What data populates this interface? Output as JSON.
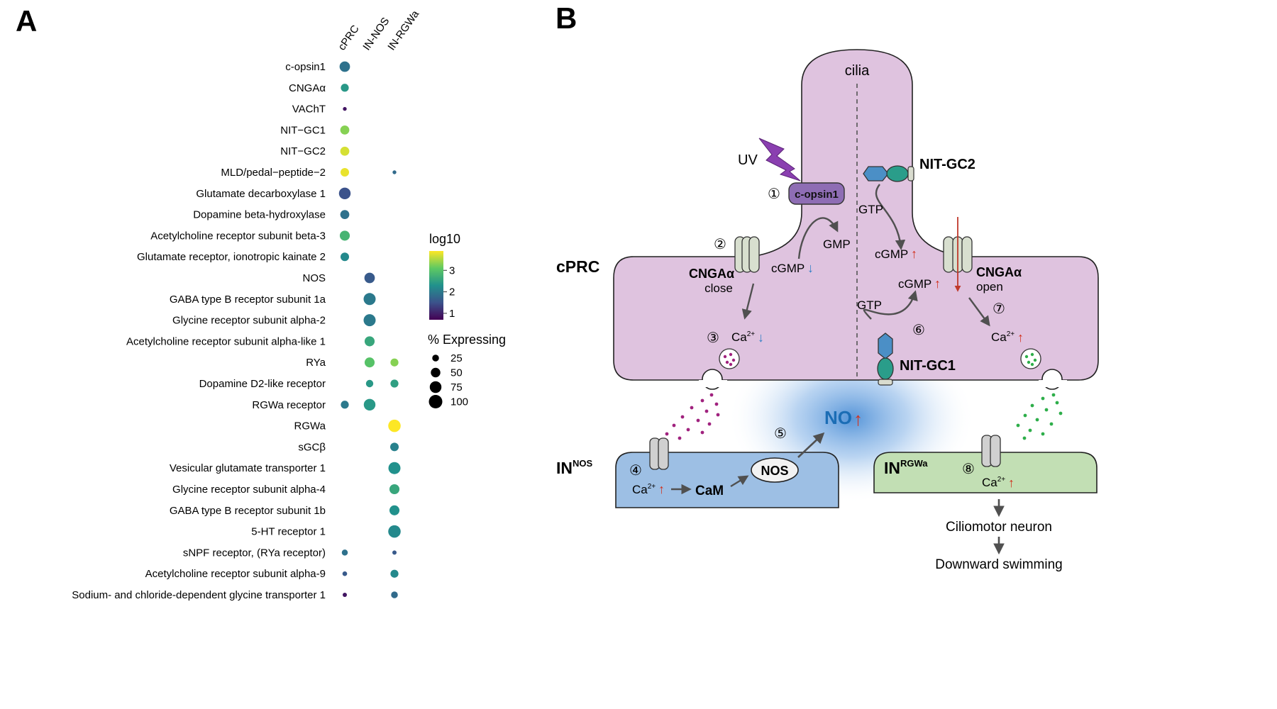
{
  "panel_a": {
    "label": "A",
    "chart_data": {
      "type": "dotplot",
      "columns": [
        "cPRC",
        "IN-NOS",
        "IN-RGWa"
      ],
      "genes": [
        "c-opsin1",
        "CNGAα",
        "VAChT",
        "NIT−GC1",
        "NIT−GC2",
        "MLD/pedal−peptide−2",
        "Glutamate decarboxylase 1",
        "Dopamine beta-hydroxylase",
        "Acetylcholine receptor subunit beta-3",
        "Glutamate receptor, ionotropic kainate 2",
        "NOS",
        "GABA type B receptor subunit 1a",
        "Glycine receptor subunit alpha-2",
        "Acetylcholine receptor subunit alpha-like 1",
        "RYa",
        "Dopamine D2-like receptor",
        "RGWa receptor",
        "RGWa",
        "sGCβ",
        "Vesicular glutamate transporter 1",
        "Glycine receptor subunit alpha-4",
        "GABA type B receptor subunit 1b",
        "5-HT receptor 1",
        "sNPF receptor, (RYa receptor)",
        "Acetylcholine receptor subunit alpha-9",
        "Sodium- and chloride-dependent glycine transporter 1"
      ],
      "points": [
        {
          "gene": 0,
          "col": 0,
          "pct": 60,
          "log10": 1.9
        },
        {
          "gene": 1,
          "col": 0,
          "pct": 35,
          "log10": 2.4
        },
        {
          "gene": 2,
          "col": 0,
          "pct": 8,
          "log10": 0.9
        },
        {
          "gene": 3,
          "col": 0,
          "pct": 45,
          "log10": 3.3
        },
        {
          "gene": 4,
          "col": 0,
          "pct": 45,
          "log10": 3.7
        },
        {
          "gene": 5,
          "col": 0,
          "pct": 40,
          "log10": 3.8
        },
        {
          "gene": 5,
          "col": 2,
          "pct": 8,
          "log10": 1.8
        },
        {
          "gene": 6,
          "col": 0,
          "pct": 75,
          "log10": 1.5
        },
        {
          "gene": 7,
          "col": 0,
          "pct": 45,
          "log10": 1.9
        },
        {
          "gene": 8,
          "col": 0,
          "pct": 55,
          "log10": 2.8
        },
        {
          "gene": 9,
          "col": 0,
          "pct": 40,
          "log10": 2.2
        },
        {
          "gene": 10,
          "col": 1,
          "pct": 60,
          "log10": 1.6
        },
        {
          "gene": 11,
          "col": 1,
          "pct": 80,
          "log10": 2.0
        },
        {
          "gene": 12,
          "col": 1,
          "pct": 80,
          "log10": 2.0
        },
        {
          "gene": 13,
          "col": 1,
          "pct": 55,
          "log10": 2.6
        },
        {
          "gene": 14,
          "col": 1,
          "pct": 55,
          "log10": 3.0
        },
        {
          "gene": 14,
          "col": 2,
          "pct": 35,
          "log10": 3.3
        },
        {
          "gene": 15,
          "col": 1,
          "pct": 30,
          "log10": 2.4
        },
        {
          "gene": 15,
          "col": 2,
          "pct": 35,
          "log10": 2.5
        },
        {
          "gene": 16,
          "col": 0,
          "pct": 35,
          "log10": 2.0
        },
        {
          "gene": 16,
          "col": 1,
          "pct": 75,
          "log10": 2.4
        },
        {
          "gene": 17,
          "col": 2,
          "pct": 85,
          "log10": 3.9
        },
        {
          "gene": 18,
          "col": 2,
          "pct": 40,
          "log10": 2.1
        },
        {
          "gene": 19,
          "col": 2,
          "pct": 80,
          "log10": 2.3
        },
        {
          "gene": 20,
          "col": 2,
          "pct": 55,
          "log10": 2.6
        },
        {
          "gene": 21,
          "col": 2,
          "pct": 55,
          "log10": 2.3
        },
        {
          "gene": 22,
          "col": 2,
          "pct": 85,
          "log10": 2.2
        },
        {
          "gene": 23,
          "col": 0,
          "pct": 20,
          "log10": 1.9
        },
        {
          "gene": 23,
          "col": 2,
          "pct": 10,
          "log10": 1.6
        },
        {
          "gene": 24,
          "col": 0,
          "pct": 12,
          "log10": 1.6
        },
        {
          "gene": 24,
          "col": 2,
          "pct": 35,
          "log10": 2.2
        },
        {
          "gene": 25,
          "col": 0,
          "pct": 10,
          "log10": 0.9
        },
        {
          "gene": 25,
          "col": 2,
          "pct": 25,
          "log10": 1.8
        }
      ],
      "color_legend": {
        "title": "log10",
        "ticks": [
          "3",
          "2",
          "1"
        ],
        "range": [
          0.7,
          3.9
        ]
      },
      "size_legend": {
        "title": "% Expressing",
        "values": [
          25,
          50,
          75,
          100
        ],
        "labels": [
          "25",
          "50",
          "75",
          "100"
        ]
      }
    }
  },
  "panel_b": {
    "label": "B",
    "cilia": "cilia",
    "uv": "UV",
    "copsin": "c-opsin1",
    "nitgc2": "NIT-GC2",
    "nitgc1": "NIT-GC1",
    "gtp1": "GTP",
    "gtp2": "GTP",
    "gmp": "GMP",
    "cgmp_down": "cGMP",
    "cgmp_up1": "cGMP",
    "cgmp_up2": "cGMP",
    "cprc": "cPRC",
    "cnga_close_a": "CNGAα",
    "cnga_close_b": "close",
    "cnga_open_a": "CNGAα",
    "cnga_open_b": "open",
    "ca": "Ca",
    "ca_sup": "2+",
    "in_nos": "IN",
    "in_nos_sup": "NOS",
    "in_rgwa": "IN",
    "in_rgwa_sup": "RGWa",
    "cam": "CaM",
    "nos": "NOS",
    "no": "NO",
    "steps": [
      "①",
      "②",
      "③",
      "④",
      "⑤",
      "⑥",
      "⑦",
      "⑧"
    ],
    "ciliomotor": "Ciliomotor neuron",
    "downward": "Downward swimming",
    "colors": {
      "cell": "#dfc3df",
      "in_nos": "#9dbfe4",
      "in_rgwa": "#c2dfb4",
      "opsin": "#8e6db4",
      "up_arrow": "#d2311d",
      "down_arrow": "#2f7fc6",
      "no_text": "#1b6db5",
      "vesicle_magenta": "#a0227e",
      "vesicle_green": "#2eae4a",
      "gray_arrow": "#505050"
    }
  }
}
